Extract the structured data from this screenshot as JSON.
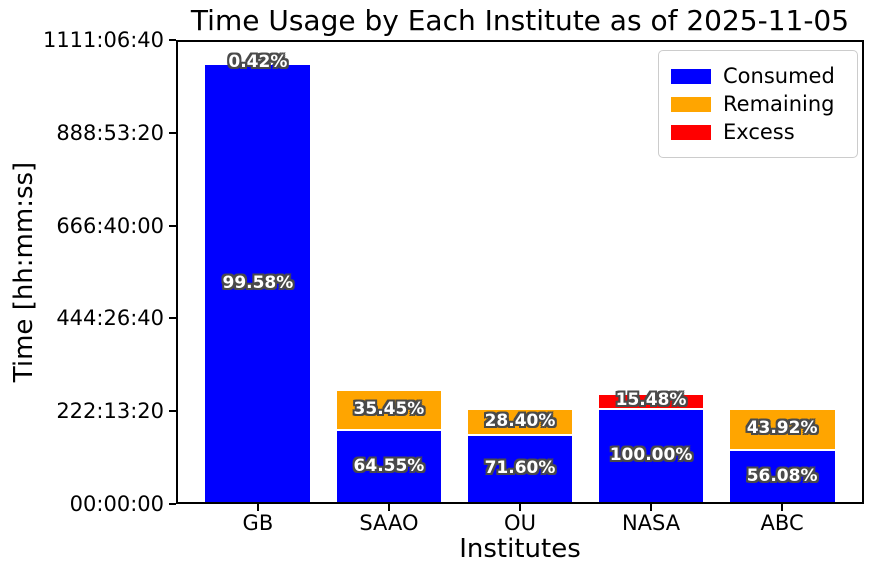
{
  "title": "Time Usage by Each Institute as of 2025-11-05",
  "xlabel": "Institutes",
  "ylabel": "Time [hh:mm:ss]",
  "legend": {
    "position": "upper right",
    "entries": [
      {
        "name": "consumed-swatch",
        "label": "Consumed",
        "color": "#0000ff"
      },
      {
        "name": "remaining-swatch",
        "label": "Remaining",
        "color": "#ffa500"
      },
      {
        "name": "excess-swatch",
        "label": "Excess",
        "color": "#ff0000"
      }
    ]
  },
  "chart_data": {
    "type": "bar",
    "stacked": true,
    "grid": false,
    "categories": [
      "GB",
      "SAAO",
      "OU",
      "NASA",
      "ABC"
    ],
    "unit": "seconds",
    "ylim": [
      0,
      4000000
    ],
    "yticks": [
      {
        "value": 0,
        "label": "00:00:00"
      },
      {
        "value": 800000,
        "label": "222:13:20"
      },
      {
        "value": 1600000,
        "label": "444:26:40"
      },
      {
        "value": 2400000,
        "label": "666:40:00"
      },
      {
        "value": 3200000,
        "label": "888:53:20"
      },
      {
        "value": 4000000,
        "label": "1111:06:40"
      }
    ],
    "series": [
      {
        "name": "Consumed",
        "color": "#0000ff",
        "values": [
          3784040,
          626135,
          582824,
          814000,
          456491
        ],
        "percent_labels": [
          "99.58%",
          "64.55%",
          "71.60%",
          "100.00%",
          "56.08%"
        ]
      },
      {
        "name": "Remaining",
        "color": "#ffa500",
        "values": [
          15960,
          343865,
          231176,
          0,
          357509
        ],
        "percent_labels": [
          "0.42%",
          "35.45%",
          "28.40%",
          "",
          "43.92%"
        ]
      },
      {
        "name": "Excess",
        "color": "#ff0000",
        "values": [
          0,
          0,
          0,
          126007,
          0
        ],
        "percent_labels": [
          "",
          "",
          "",
          "15.48%",
          ""
        ]
      }
    ]
  }
}
